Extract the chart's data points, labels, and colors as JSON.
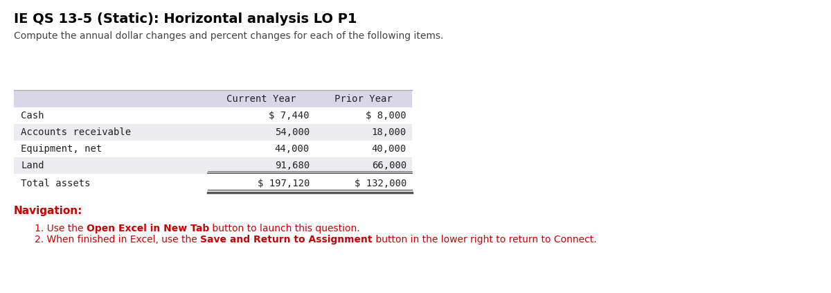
{
  "title": "IE QS 13-5 (Static): Horizontal analysis LO P1",
  "subtitle": "Compute the annual dollar changes and percent changes for each of the following items.",
  "col_headers": [
    "Current Year",
    "Prior Year"
  ],
  "rows": [
    {
      "label": "Cash",
      "current": "$ 7,440",
      "prior": "$ 8,000"
    },
    {
      "label": "Accounts receivable",
      "current": "54,000",
      "prior": "18,000"
    },
    {
      "label": "Equipment, net",
      "current": "44,000",
      "prior": "40,000"
    },
    {
      "label": "Land",
      "current": "91,680",
      "prior": "66,000"
    }
  ],
  "total_row": {
    "label": "Total assets",
    "current": "$ 197,120",
    "prior": "$ 132,000"
  },
  "nav_title": "Navigation:",
  "nav_items": [
    {
      "prefix": "1. Use the ",
      "bold": "Open Excel in New Tab",
      "suffix": " button to launch this question."
    },
    {
      "prefix": "2. When finished in Excel, use the ",
      "bold": "Save and Return to Assignment",
      "suffix": " button in the lower right to return to Connect."
    }
  ],
  "bg_color": "#ffffff",
  "table_header_bg": "#d8d8e8",
  "table_row_alt_bg": "#ebebf2",
  "table_row_bg": "#ffffff",
  "table_border_color": "#555555",
  "title_color": "#000000",
  "subtitle_color": "#444444",
  "nav_title_color": "#cc0000",
  "nav_text_color": "#cc0000",
  "nav_bold_color": "#cc0000",
  "table_font": "monospace",
  "title_fontsize": 14,
  "subtitle_fontsize": 10,
  "table_fontsize": 10,
  "nav_fontsize": 10
}
